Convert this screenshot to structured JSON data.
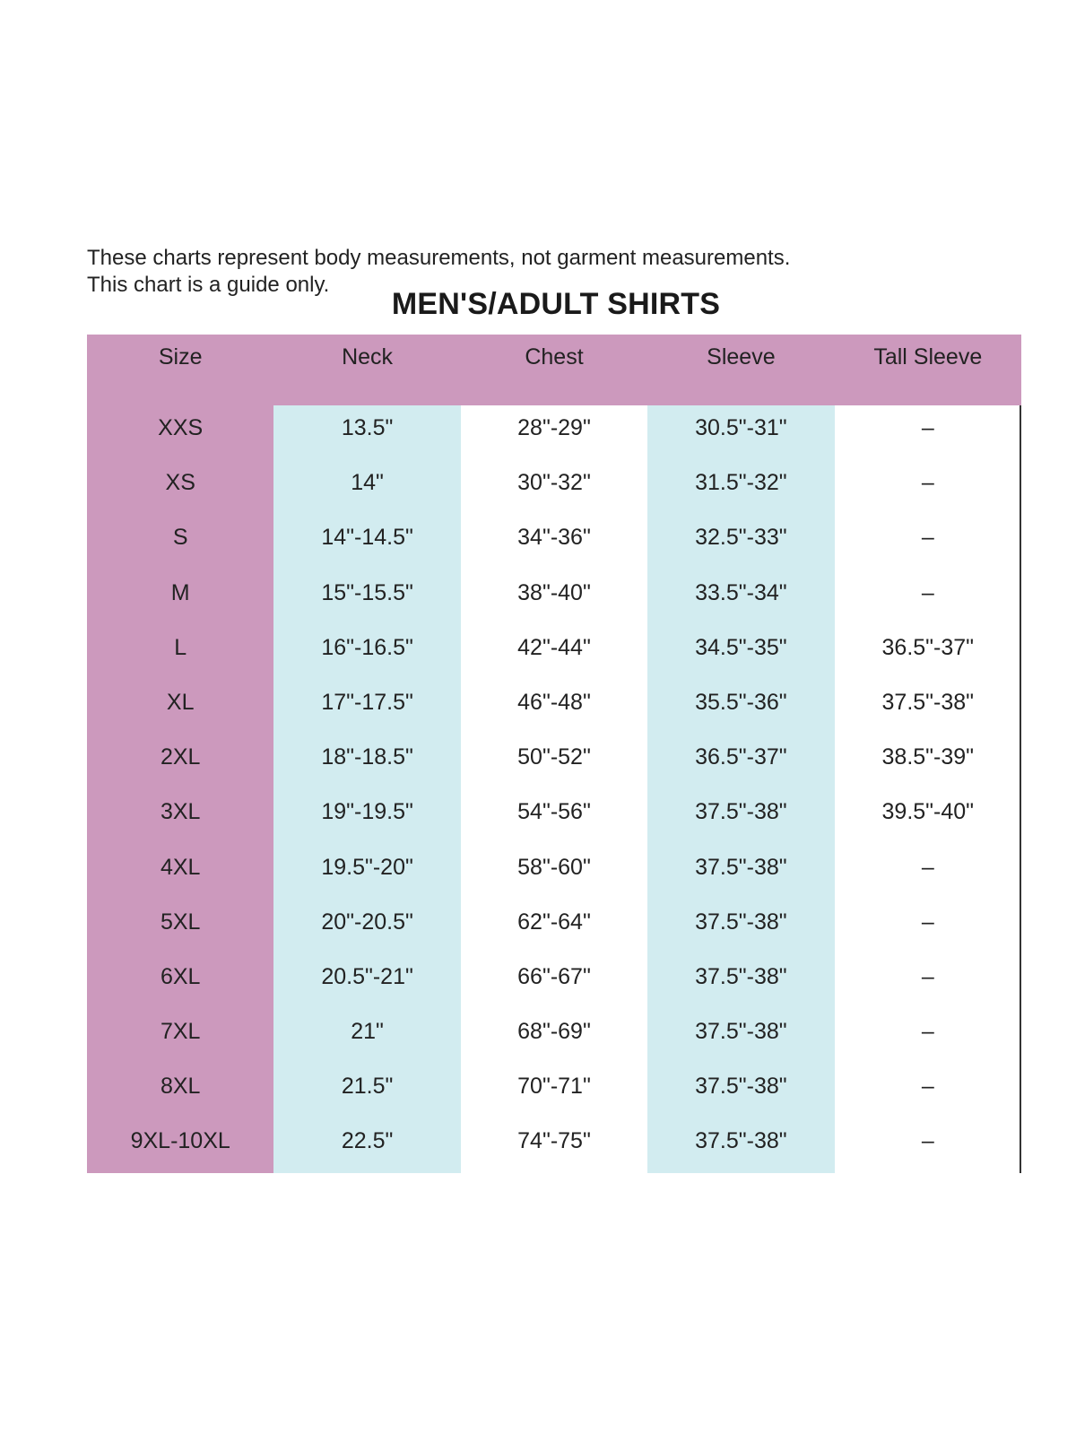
{
  "notes": [
    "These charts represent body measurements, not garment measurements.",
    "This chart is a guide only."
  ],
  "title": "MEN'S/ADULT SHIRTS",
  "colors": {
    "size_column": "#cc99bd",
    "header": "#cc99bd",
    "stripe": "#d2ecf0",
    "plain": "#ffffff"
  },
  "columns": [
    "Size",
    "Neck",
    "Chest",
    "Sleeve",
    "Tall Sleeve"
  ],
  "rows": [
    [
      "XXS",
      "13.5\"",
      "28\"-29\"",
      "30.5\"-31\"",
      "–"
    ],
    [
      "XS",
      "14\"",
      "30\"-32\"",
      "31.5\"-32\"",
      "–"
    ],
    [
      "S",
      "14\"-14.5\"",
      "34\"-36\"",
      "32.5\"-33\"",
      "–"
    ],
    [
      "M",
      "15\"-15.5\"",
      "38\"-40\"",
      "33.5\"-34\"",
      "–"
    ],
    [
      "L",
      "16\"-16.5\"",
      "42\"-44\"",
      "34.5\"-35\"",
      "36.5\"-37\""
    ],
    [
      "XL",
      "17\"-17.5\"",
      "46\"-48\"",
      "35.5\"-36\"",
      "37.5\"-38\""
    ],
    [
      "2XL",
      "18\"-18.5\"",
      "50\"-52\"",
      "36.5\"-37\"",
      "38.5\"-39\""
    ],
    [
      "3XL",
      "19\"-19.5\"",
      "54\"-56\"",
      "37.5\"-38\"",
      "39.5\"-40\""
    ],
    [
      "4XL",
      "19.5\"-20\"",
      "58\"-60\"",
      "37.5\"-38\"",
      "–"
    ],
    [
      "5XL",
      "20\"-20.5\"",
      "62\"-64\"",
      "37.5\"-38\"",
      "–"
    ],
    [
      "6XL",
      "20.5\"-21\"",
      "66\"-67\"",
      "37.5\"-38\"",
      "–"
    ],
    [
      "7XL",
      "21\"",
      "68\"-69\"",
      "37.5\"-38\"",
      "–"
    ],
    [
      "8XL",
      "21.5\"",
      "70\"-71\"",
      "37.5\"-38\"",
      "–"
    ],
    [
      "9XL-10XL",
      "22.5\"",
      "74\"-75\"",
      "37.5\"-38\"",
      "–"
    ]
  ]
}
